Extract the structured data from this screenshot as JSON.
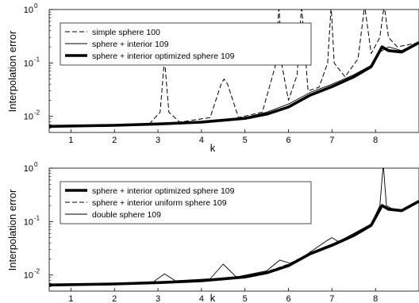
{
  "ylabel": "Interpolation error",
  "chart_data": [
    {
      "type": "line",
      "xlabel": "k",
      "xlim": [
        0.5,
        9
      ],
      "ylim": [
        0.005,
        1
      ],
      "yscale": "log",
      "xticks": [
        "1",
        "2",
        "3",
        "4",
        "5",
        "6",
        "7",
        "8"
      ],
      "yticks": [
        {
          "base": "10",
          "exp": "-2",
          "value": 0.01
        },
        {
          "base": "10",
          "exp": "-1",
          "value": 0.1
        },
        {
          "base": "10",
          "exp": "0",
          "value": 1
        }
      ],
      "legend_position": "top-left",
      "series": [
        {
          "name": "simple sphere 100",
          "style": "dashed",
          "x": [
            0.5,
            2.0,
            2.8,
            3.05,
            3.15,
            3.25,
            3.5,
            4.2,
            4.45,
            4.52,
            4.6,
            4.85,
            5.4,
            5.7,
            5.78,
            5.85,
            6.0,
            6.2,
            6.3,
            6.45,
            6.7,
            6.9,
            6.98,
            7.05,
            7.3,
            7.6,
            7.75,
            7.9,
            8.1,
            8.2,
            8.3,
            8.5,
            9.0
          ],
          "values": [
            0.0065,
            0.0068,
            0.0072,
            0.012,
            0.12,
            0.012,
            0.0078,
            0.0095,
            0.04,
            0.05,
            0.04,
            0.0095,
            0.012,
            0.09,
            1.2,
            0.09,
            0.02,
            0.06,
            1.2,
            0.03,
            0.035,
            0.1,
            1.2,
            0.1,
            0.055,
            0.12,
            1.2,
            0.15,
            0.3,
            1.2,
            0.3,
            0.2,
            0.24
          ]
        },
        {
          "name": "sphere + interior 109",
          "style": "thin",
          "x": [
            0.5,
            2.0,
            3.0,
            4.0,
            5.0,
            5.5,
            6.0,
            6.5,
            7.0,
            7.5,
            7.9,
            8.1,
            8.3,
            8.6,
            9.0
          ],
          "values": [
            0.0065,
            0.0068,
            0.0073,
            0.008,
            0.0095,
            0.012,
            0.017,
            0.028,
            0.04,
            0.06,
            0.09,
            0.16,
            0.2,
            0.17,
            0.24
          ]
        },
        {
          "name": "sphere + interior optimized sphere 109",
          "style": "thick",
          "x": [
            0.5,
            2.0,
            3.0,
            4.0,
            5.0,
            5.5,
            6.0,
            6.5,
            7.0,
            7.5,
            7.9,
            8.15,
            8.3,
            8.6,
            9.0
          ],
          "values": [
            0.0065,
            0.0068,
            0.0072,
            0.0078,
            0.0092,
            0.011,
            0.015,
            0.025,
            0.036,
            0.055,
            0.085,
            0.2,
            0.17,
            0.16,
            0.24
          ]
        }
      ]
    },
    {
      "type": "line",
      "xlabel": "k",
      "xlim": [
        0.5,
        9
      ],
      "ylim": [
        0.005,
        1
      ],
      "yscale": "log",
      "xticks": [
        "1",
        "2",
        "3",
        "4",
        "5",
        "6",
        "7",
        "8"
      ],
      "yticks": [
        {
          "base": "10",
          "exp": "-2",
          "value": 0.01
        },
        {
          "base": "10",
          "exp": "-1",
          "value": 0.1
        },
        {
          "base": "10",
          "exp": "0",
          "value": 1
        }
      ],
      "legend_position": "top-left",
      "series": [
        {
          "name": "sphere + interior optimized sphere 109",
          "style": "thick",
          "x": [
            0.5,
            2.0,
            3.0,
            4.0,
            5.0,
            5.5,
            6.0,
            6.5,
            7.0,
            7.5,
            7.9,
            8.15,
            8.3,
            8.6,
            9.0
          ],
          "values": [
            0.0065,
            0.0068,
            0.0072,
            0.0078,
            0.0092,
            0.011,
            0.015,
            0.025,
            0.036,
            0.055,
            0.085,
            0.2,
            0.17,
            0.16,
            0.24
          ]
        },
        {
          "name": "sphere + interior uniform sphere 109",
          "style": "dashed",
          "x": [
            0.5,
            2.0,
            3.0,
            4.0,
            5.0,
            5.5,
            6.0,
            6.5,
            7.0,
            7.5,
            7.9,
            8.15,
            8.3,
            8.6,
            9.0
          ],
          "values": [
            0.0065,
            0.0069,
            0.0074,
            0.0081,
            0.0096,
            0.0115,
            0.016,
            0.026,
            0.038,
            0.057,
            0.088,
            0.21,
            0.18,
            0.165,
            0.24
          ]
        },
        {
          "name": "double sphere 109",
          "style": "thin",
          "x": [
            0.5,
            2.0,
            2.9,
            3.15,
            3.4,
            4.2,
            4.5,
            4.8,
            5.5,
            5.8,
            6.1,
            6.5,
            6.9,
            7.0,
            7.15,
            7.5,
            7.9,
            8.1,
            8.18,
            8.25,
            8.4,
            8.6,
            9.0
          ],
          "values": [
            0.0065,
            0.0068,
            0.0075,
            0.0105,
            0.0078,
            0.0085,
            0.016,
            0.0092,
            0.012,
            0.019,
            0.016,
            0.027,
            0.045,
            0.05,
            0.042,
            0.06,
            0.09,
            0.2,
            1.2,
            0.2,
            0.17,
            0.16,
            0.24
          ]
        }
      ]
    }
  ]
}
